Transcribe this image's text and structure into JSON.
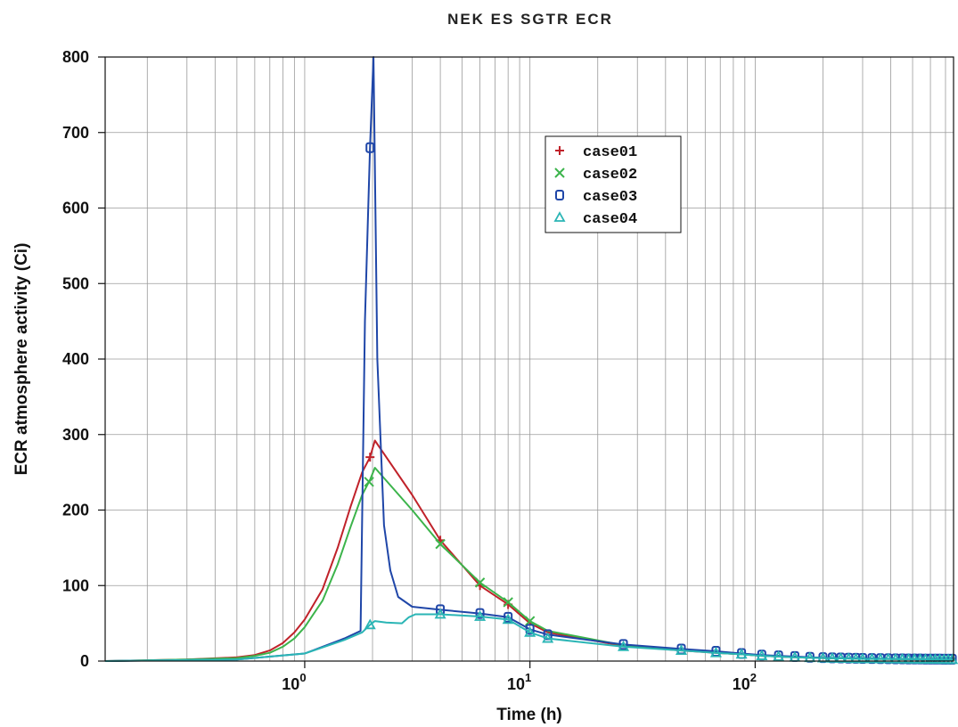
{
  "chart_data": {
    "type": "line",
    "title": "NEK ES SGTR ECR",
    "xlabel": "Time (h)",
    "ylabel": "ECR atmosphere activity (Ci)",
    "x_scale": "log",
    "xlim": [
      0.13,
      760
    ],
    "ylim": [
      0,
      800
    ],
    "yticks": [
      0,
      100,
      200,
      300,
      400,
      500,
      600,
      700,
      800
    ],
    "xticks": [
      {
        "value": 1,
        "base": "10",
        "exp": "0"
      },
      {
        "value": 10,
        "base": "10",
        "exp": "1"
      },
      {
        "value": 100,
        "base": "10",
        "exp": "2"
      }
    ],
    "grid": true,
    "legend_position": "upper-middle-right",
    "series": [
      {
        "name": "case01",
        "marker": "+",
        "marker_label": "+",
        "color": "#c0222a",
        "x": [
          0.13,
          0.3,
          0.5,
          0.6,
          0.7,
          0.8,
          0.9,
          1.0,
          1.2,
          1.4,
          1.6,
          1.8,
          1.95,
          2.05,
          3,
          4,
          6,
          8,
          10,
          12,
          26,
          47,
          67,
          87,
          107,
          127,
          150,
          175,
          200,
          250,
          300,
          400,
          500,
          760
        ],
        "y": [
          0,
          2,
          5,
          8,
          14,
          24,
          38,
          55,
          95,
          150,
          205,
          250,
          270,
          292,
          220,
          160,
          100,
          75,
          50,
          38,
          20,
          14,
          11,
          9,
          7,
          6,
          5,
          4.5,
          4,
          3.5,
          3,
          2.8,
          2.5,
          2
        ],
        "marker_x": [
          1.95,
          4,
          6,
          8
        ]
      },
      {
        "name": "case02",
        "marker": "x",
        "marker_label": "X",
        "color": "#3cb44b",
        "x": [
          0.13,
          0.3,
          0.5,
          0.6,
          0.7,
          0.8,
          0.9,
          1.0,
          1.2,
          1.4,
          1.6,
          1.8,
          1.95,
          2.05,
          3,
          4,
          6,
          8,
          10,
          12,
          26,
          47,
          67,
          87,
          107,
          127,
          150,
          175,
          200,
          250,
          300,
          400,
          500,
          760
        ],
        "y": [
          0,
          2,
          4,
          7,
          11,
          19,
          30,
          45,
          80,
          128,
          178,
          220,
          240,
          256,
          200,
          155,
          104,
          78,
          53,
          40,
          21,
          15,
          11,
          9,
          7,
          6,
          5,
          4.5,
          4,
          3.5,
          3,
          2.8,
          2.5,
          2
        ],
        "marker_x": [
          1.93,
          4,
          6,
          8,
          10
        ]
      },
      {
        "name": "case03",
        "marker": "square",
        "marker_label": "□",
        "color": "#1f46a8",
        "x": [
          0.13,
          0.5,
          1.0,
          1.5,
          1.77,
          1.85,
          1.95,
          2.02,
          2.1,
          2.25,
          2.4,
          2.6,
          3,
          4,
          6,
          8,
          10,
          12,
          26,
          47,
          67,
          87,
          107,
          127,
          150,
          175,
          200,
          250,
          300,
          400,
          500,
          760
        ],
        "y": [
          0,
          2,
          10,
          30,
          40,
          450,
          680,
          800,
          400,
          180,
          120,
          85,
          72,
          68,
          63,
          58,
          42,
          35,
          22,
          16,
          13,
          10,
          8,
          7,
          6,
          5,
          4.5,
          4,
          3.5,
          3,
          2.8,
          2.5
        ],
        "marker_x": [
          1.95,
          4,
          6,
          8,
          10,
          12,
          26,
          47,
          67,
          87,
          107,
          127,
          150,
          175,
          200,
          220,
          240,
          260,
          280,
          300,
          330,
          360,
          390,
          420,
          450,
          480,
          510,
          540,
          570,
          600,
          630,
          660,
          690,
          720,
          750
        ]
      },
      {
        "name": "case04",
        "marker": "triangle",
        "marker_label": "Δ",
        "color": "#2ab5b5",
        "x": [
          0.13,
          0.5,
          1.0,
          1.5,
          1.8,
          1.95,
          2.05,
          2.3,
          2.7,
          2.9,
          3.1,
          4,
          6,
          8,
          10,
          12,
          26,
          47,
          67,
          87,
          107,
          127,
          150,
          175,
          200,
          250,
          300,
          400,
          500,
          760
        ],
        "y": [
          0,
          2,
          10,
          28,
          38,
          48,
          53,
          51,
          50,
          58,
          62,
          62,
          59,
          55,
          38,
          30,
          19,
          14,
          11,
          9,
          7,
          6,
          5,
          4.5,
          4,
          3.5,
          3,
          2.8,
          2.5,
          2
        ],
        "marker_x": [
          1.95,
          4,
          6,
          8,
          10,
          12,
          26,
          47,
          67,
          87,
          107,
          127,
          150,
          175,
          200,
          220,
          240,
          260,
          280,
          300,
          330,
          360,
          390,
          420,
          450,
          480,
          510,
          540,
          570,
          600,
          630,
          660,
          690,
          720,
          750
        ]
      }
    ]
  }
}
